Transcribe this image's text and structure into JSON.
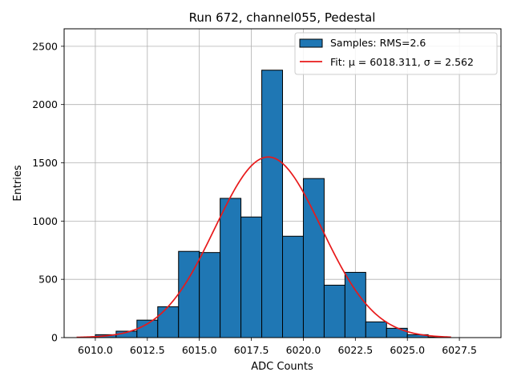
{
  "chart_data": {
    "type": "bar",
    "title": "Run 672, channel055, Pedestal",
    "xlabel": "ADC Counts",
    "ylabel": "Entries",
    "xlim": [
      6008.5,
      6029.5
    ],
    "ylim": [
      0,
      2650
    ],
    "grid": true,
    "legend_position": "top-right",
    "xticks": [
      6010.0,
      6012.5,
      6015.0,
      6017.5,
      6020.0,
      6022.5,
      6025.0,
      6027.5
    ],
    "xtick_labels": [
      "6010.0",
      "6012.5",
      "6015.0",
      "6017.5",
      "6020.0",
      "6022.5",
      "6025.0",
      "6027.5"
    ],
    "yticks": [
      0,
      500,
      1000,
      1500,
      2000,
      2500
    ],
    "ytick_labels": [
      "0",
      "500",
      "1000",
      "1500",
      "2000",
      "2500"
    ],
    "histogram": {
      "name": "Samples: RMS=2.6",
      "color": "#1f77b4",
      "edge_color": "#000000",
      "bin_edges": [
        6010,
        6011,
        6012,
        6013,
        6014,
        6015,
        6016,
        6017,
        6018,
        6019,
        6020,
        6021,
        6022,
        6023,
        6024,
        6025,
        6026,
        6027
      ],
      "counts": [
        25,
        55,
        150,
        265,
        740,
        730,
        1195,
        1035,
        2295,
        870,
        1365,
        450,
        560,
        135,
        80,
        25,
        5
      ]
    },
    "fit": {
      "name": "Fit: μ = 6018.311, σ = 2.562",
      "color": "#e8191a",
      "mu": 6018.311,
      "sigma": 2.562,
      "amplitude": 1550,
      "x_range": [
        6009.1,
        6027.1
      ]
    }
  }
}
